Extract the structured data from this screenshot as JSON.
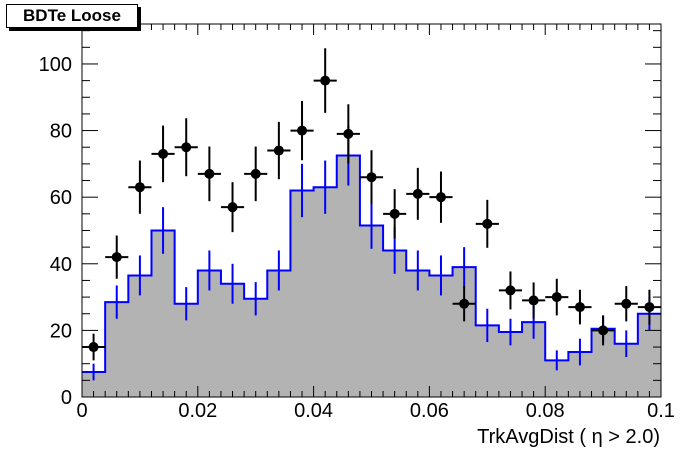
{
  "chart_data": {
    "type": "histogram",
    "title": "BDTe Loose",
    "xlabel": "TrkAvgDist ( η > 2.0)",
    "ylabel": "",
    "xlim": [
      0,
      0.1
    ],
    "ylim": [
      0,
      112
    ],
    "x_ticks": [
      "0",
      "0.02",
      "0.04",
      "0.06",
      "0.08",
      "0.1"
    ],
    "x_tick_values": [
      0,
      0.02,
      0.04,
      0.06,
      0.08,
      0.1
    ],
    "y_ticks": [
      "0",
      "20",
      "40",
      "60",
      "80",
      "100"
    ],
    "y_tick_values": [
      0,
      20,
      40,
      60,
      80,
      100
    ],
    "bin_edges": [
      0,
      0.004,
      0.008,
      0.012,
      0.016,
      0.02,
      0.024,
      0.028,
      0.032,
      0.036,
      0.04,
      0.044,
      0.048,
      0.052,
      0.056,
      0.06,
      0.064,
      0.068,
      0.072,
      0.076,
      0.08,
      0.084,
      0.088,
      0.092,
      0.096,
      0.1
    ],
    "series": [
      {
        "kind": "histogram",
        "fill": "#b3b3b3",
        "line_color": "#0000ff",
        "values": [
          7.5,
          28.5,
          36.5,
          50,
          28,
          38,
          34,
          29.5,
          38,
          62,
          63,
          72.5,
          51.5,
          44,
          38,
          36.5,
          39,
          21.5,
          19.5,
          22.5,
          11,
          13.5,
          20.5,
          16,
          25
        ],
        "errors": [
          2.5,
          5,
          6,
          7,
          5,
          6,
          6,
          5,
          6,
          8,
          8,
          9,
          7,
          7,
          6,
          6,
          6,
          5,
          4,
          5,
          3,
          4,
          4,
          4,
          5
        ]
      },
      {
        "kind": "points",
        "color": "#000000",
        "x": [
          0.002,
          0.006,
          0.01,
          0.014,
          0.018,
          0.022,
          0.026,
          0.03,
          0.034,
          0.038,
          0.042,
          0.046,
          0.05,
          0.054,
          0.058,
          0.062,
          0.066,
          0.07,
          0.074,
          0.078,
          0.082,
          0.086,
          0.09,
          0.094,
          0.098
        ],
        "y": [
          15,
          42,
          63,
          73,
          75,
          67,
          57,
          67,
          74,
          80,
          95,
          79,
          66,
          55,
          61,
          60,
          28,
          52,
          32,
          29,
          30,
          27,
          20,
          28,
          27
        ],
        "yerr": [
          4,
          6.5,
          8,
          8.5,
          8.7,
          8.2,
          7.5,
          8.2,
          8.6,
          8.9,
          9.7,
          8.9,
          8.1,
          7.4,
          7.8,
          7.7,
          5.3,
          7.2,
          5.7,
          5.4,
          5.5,
          5.2,
          4.5,
          5.3,
          5.2
        ]
      }
    ],
    "grid": false
  }
}
